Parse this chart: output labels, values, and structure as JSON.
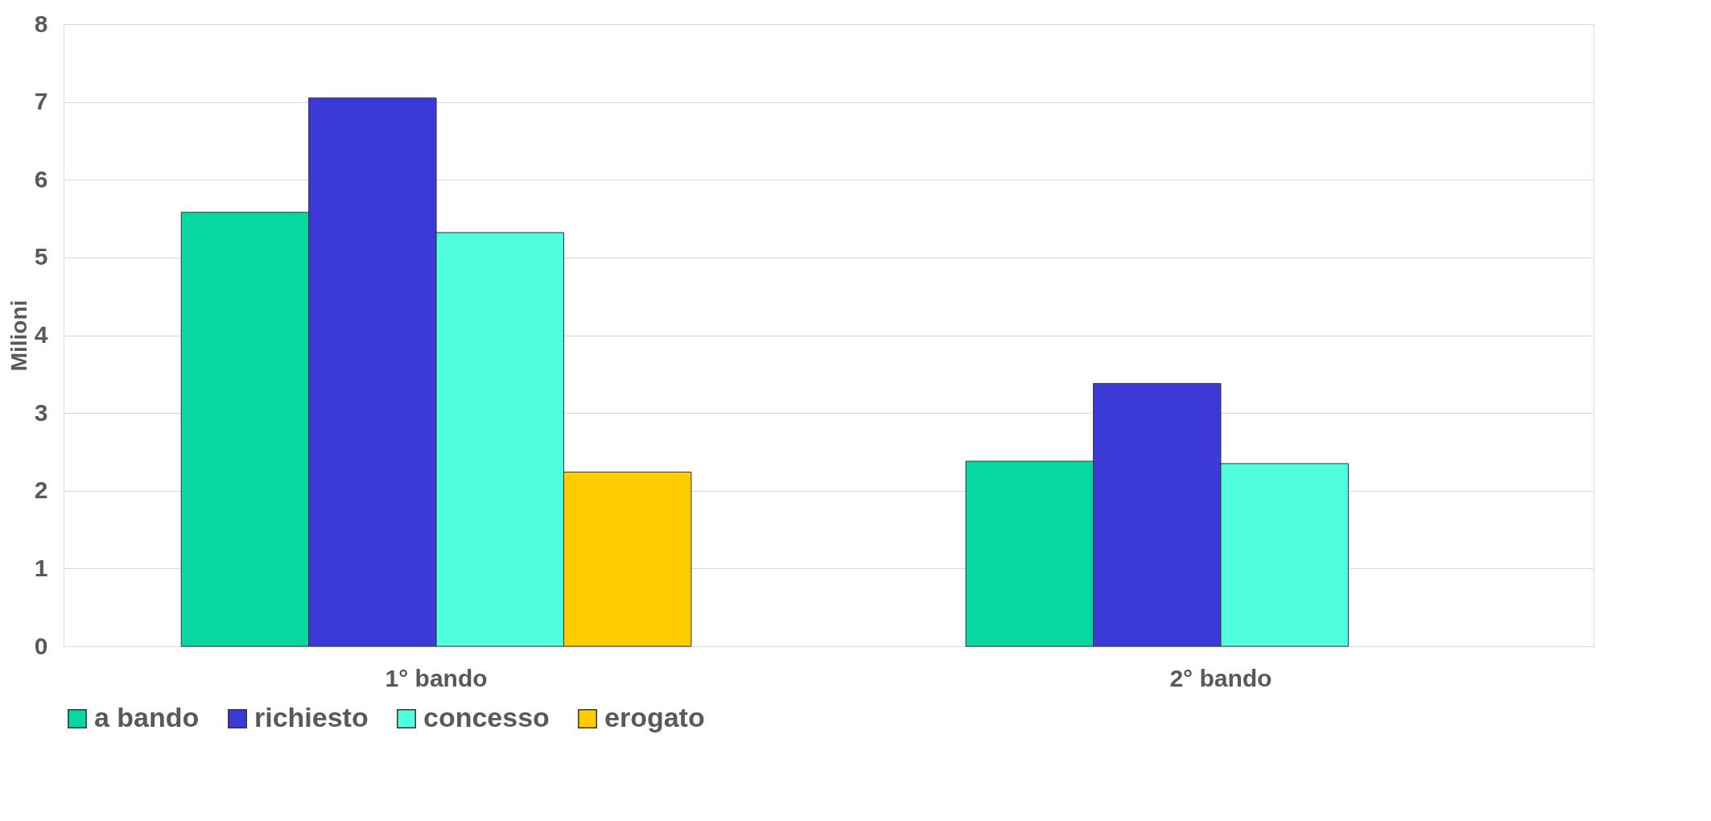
{
  "chart_data": {
    "type": "bar",
    "ylabel": "Milioni",
    "categories": [
      "1° bando",
      "2° bando"
    ],
    "series": [
      {
        "name": "a bando",
        "color": "#08d8a0",
        "values": [
          5.58,
          2.38
        ]
      },
      {
        "name": "richiesto",
        "color": "#3a3ad8",
        "values": [
          7.05,
          3.38
        ]
      },
      {
        "name": "concesso",
        "color": "#50ffe0",
        "values": [
          5.32,
          2.35
        ]
      },
      {
        "name": "erogato",
        "color": "#ffcc00",
        "values": [
          2.24,
          null
        ]
      }
    ],
    "ylim": [
      0,
      8
    ],
    "yticks": [
      0,
      1,
      2,
      3,
      4,
      5,
      6,
      7,
      8
    ],
    "grid": "y",
    "legend": "bottom"
  }
}
